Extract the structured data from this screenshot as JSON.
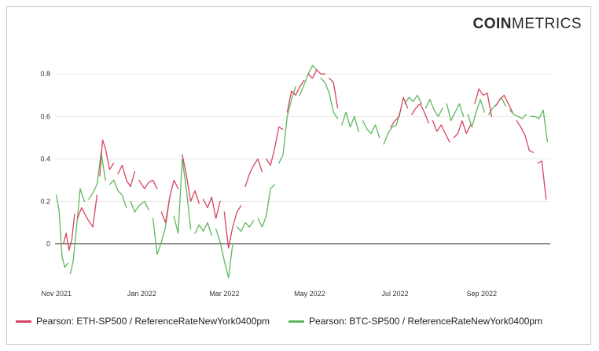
{
  "logo": {
    "bold_part": "COIN",
    "light_part": "METRICS"
  },
  "colors": {
    "eth": "#d6445f",
    "btc": "#5cb85c",
    "zero_line": "#222222",
    "grid": "#e8e8e8",
    "watermark": "#dcdcdc"
  },
  "chart_data": {
    "type": "line",
    "title": "",
    "xlabel": "",
    "ylabel": "",
    "x_tick_labels": [
      {
        "date": "2021-11-01",
        "label": "Nov 2021"
      },
      {
        "date": "2022-01-01",
        "label": "Jan 2022"
      },
      {
        "date": "2022-03-01",
        "label": "Mar 2022"
      },
      {
        "date": "2022-05-01",
        "label": "May 2022"
      },
      {
        "date": "2022-07-01",
        "label": "Jul 2022"
      },
      {
        "date": "2022-09-01",
        "label": "Sep 2022"
      }
    ],
    "y_ticks": [
      0,
      0.2,
      0.4,
      0.6,
      0.8
    ],
    "y_tick_labels": [
      "0",
      "0.2",
      "0.4",
      "0.6",
      "0.8"
    ],
    "xlim": [
      "2021-10-31",
      "2022-10-20"
    ],
    "ylim": [
      -0.19,
      0.86
    ],
    "grid": "horizontal",
    "legend_placement": "bottom",
    "series": [
      {
        "name": "Pearson: ETH-SP500 / ReferenceRateNewYork0400pm",
        "color": "#d6445f",
        "points": [
          [
            "2021-11-06",
            0.0
          ],
          [
            "2021-11-08",
            0.05
          ],
          [
            "2021-11-10",
            -0.03
          ],
          [
            "2021-11-12",
            0.02
          ],
          [
            "2021-11-14",
            0.14
          ],
          [
            "2021-11-16",
            0.12
          ],
          [
            "2021-11-19",
            0.17
          ],
          [
            "2021-11-23",
            0.12
          ],
          [
            "2021-11-27",
            0.08
          ],
          [
            "2021-11-30",
            0.23
          ],
          [
            "2021-12-02",
            0.32
          ],
          [
            "2021-12-04",
            0.49
          ],
          [
            "2021-12-06",
            0.45
          ],
          [
            "2021-12-09",
            0.35
          ],
          [
            "2021-12-12",
            0.38
          ],
          [
            "2021-12-15",
            0.33
          ],
          [
            "2021-12-18",
            0.37
          ],
          [
            "2021-12-21",
            0.3
          ],
          [
            "2021-12-24",
            0.27
          ],
          [
            "2021-12-27",
            0.34
          ],
          [
            "2021-12-30",
            0.3
          ],
          [
            "2022-01-03",
            0.26
          ],
          [
            "2022-01-06",
            0.29
          ],
          [
            "2022-01-09",
            0.3
          ],
          [
            "2022-01-12",
            0.26
          ],
          [
            "2022-01-15",
            0.15
          ],
          [
            "2022-01-18",
            0.1
          ],
          [
            "2022-01-21",
            0.22
          ],
          [
            "2022-01-24",
            0.3
          ],
          [
            "2022-01-27",
            0.26
          ],
          [
            "2022-01-30",
            0.42
          ],
          [
            "2022-02-02",
            0.32
          ],
          [
            "2022-02-05",
            0.2
          ],
          [
            "2022-02-08",
            0.25
          ],
          [
            "2022-02-11",
            0.19
          ],
          [
            "2022-02-14",
            0.21
          ],
          [
            "2022-02-17",
            0.17
          ],
          [
            "2022-02-20",
            0.22
          ],
          [
            "2022-02-23",
            0.12
          ],
          [
            "2022-02-26",
            0.2
          ],
          [
            "2022-03-01",
            0.15
          ],
          [
            "2022-03-04",
            -0.02
          ],
          [
            "2022-03-07",
            0.08
          ],
          [
            "2022-03-10",
            0.15
          ],
          [
            "2022-03-13",
            0.18
          ],
          [
            "2022-03-16",
            0.27
          ],
          [
            "2022-03-19",
            0.33
          ],
          [
            "2022-03-22",
            0.37
          ],
          [
            "2022-03-25",
            0.4
          ],
          [
            "2022-03-28",
            0.34
          ],
          [
            "2022-03-31",
            0.4
          ],
          [
            "2022-04-03",
            0.37
          ],
          [
            "2022-04-06",
            0.45
          ],
          [
            "2022-04-09",
            0.55
          ],
          [
            "2022-04-12",
            0.54
          ],
          [
            "2022-04-15",
            0.62
          ],
          [
            "2022-04-18",
            0.72
          ],
          [
            "2022-04-21",
            0.7
          ],
          [
            "2022-04-24",
            0.74
          ],
          [
            "2022-04-27",
            0.77
          ],
          [
            "2022-04-30",
            0.8
          ],
          [
            "2022-05-03",
            0.78
          ],
          [
            "2022-05-06",
            0.82
          ],
          [
            "2022-05-09",
            0.8
          ],
          [
            "2022-05-12",
            0.8
          ],
          [
            "2022-05-15",
            0.78
          ],
          [
            "2022-05-18",
            0.76
          ],
          [
            "2022-05-21",
            0.64
          ]
        ],
        "segments_late": [
          [
            "2022-06-28",
            0.55
          ],
          [
            "2022-07-01",
            0.58
          ],
          [
            "2022-07-04",
            0.6
          ],
          [
            "2022-07-07",
            0.69
          ],
          [
            "2022-07-10",
            0.64
          ],
          [
            "2022-07-13",
            0.61
          ],
          [
            "2022-07-16",
            0.64
          ],
          [
            "2022-07-19",
            0.66
          ],
          [
            "2022-07-22",
            0.62
          ],
          [
            "2022-07-25",
            0.57
          ],
          [
            "2022-07-28",
            0.58
          ],
          [
            "2022-07-31",
            0.53
          ],
          [
            "2022-08-03",
            0.56
          ],
          [
            "2022-08-06",
            0.52
          ],
          [
            "2022-08-09",
            0.48
          ],
          [
            "2022-08-12",
            0.5
          ],
          [
            "2022-08-15",
            0.52
          ],
          [
            "2022-08-18",
            0.58
          ],
          [
            "2022-08-21",
            0.52
          ],
          [
            "2022-08-24",
            0.56
          ],
          [
            "2022-08-27",
            0.66
          ],
          [
            "2022-08-30",
            0.73
          ],
          [
            "2022-09-02",
            0.7
          ],
          [
            "2022-09-05",
            0.71
          ],
          [
            "2022-09-08",
            0.6
          ],
          [
            "2022-09-11",
            0.65
          ],
          [
            "2022-09-14",
            0.68
          ],
          [
            "2022-09-17",
            0.7
          ],
          [
            "2022-09-20",
            0.66
          ],
          [
            "2022-09-23",
            0.62
          ],
          [
            "2022-09-26",
            0.58
          ],
          [
            "2022-09-29",
            0.55
          ],
          [
            "2022-10-02",
            0.51
          ],
          [
            "2022-10-05",
            0.44
          ],
          [
            "2022-10-08",
            0.43
          ],
          [
            "2022-10-11",
            0.38
          ],
          [
            "2022-10-14",
            0.39
          ],
          [
            "2022-10-17",
            0.21
          ]
        ]
      },
      {
        "name": "Pearson: BTC-SP500 / ReferenceRateNewYork0400pm",
        "color": "#5cb85c",
        "points": [
          [
            "2021-11-01",
            0.23
          ],
          [
            "2021-11-03",
            0.15
          ],
          [
            "2021-11-05",
            -0.06
          ],
          [
            "2021-11-07",
            -0.11
          ],
          [
            "2021-11-09",
            -0.09
          ],
          [
            "2021-11-11",
            -0.14
          ],
          [
            "2021-11-13",
            -0.08
          ],
          [
            "2021-11-15",
            0.05
          ],
          [
            "2021-11-18",
            0.26
          ],
          [
            "2021-11-21",
            0.2
          ],
          [
            "2021-11-24",
            0.21
          ],
          [
            "2021-11-27",
            0.24
          ],
          [
            "2021-11-30",
            0.28
          ],
          [
            "2021-12-03",
            0.43
          ],
          [
            "2021-12-06",
            0.3
          ],
          [
            "2021-12-09",
            0.28
          ],
          [
            "2021-12-12",
            0.3
          ],
          [
            "2021-12-15",
            0.25
          ],
          [
            "2021-12-18",
            0.23
          ],
          [
            "2021-12-21",
            0.17
          ],
          [
            "2021-12-24",
            0.2
          ],
          [
            "2021-12-27",
            0.15
          ],
          [
            "2021-12-30",
            0.18
          ],
          [
            "2022-01-03",
            0.2
          ],
          [
            "2022-01-06",
            0.16
          ],
          [
            "2022-01-09",
            0.12
          ],
          [
            "2022-01-12",
            -0.05
          ],
          [
            "2022-01-15",
            0.01
          ],
          [
            "2022-01-18",
            0.08
          ],
          [
            "2022-01-21",
            0.22
          ],
          [
            "2022-01-24",
            0.13
          ],
          [
            "2022-01-27",
            0.05
          ],
          [
            "2022-01-30",
            0.4
          ],
          [
            "2022-02-02",
            0.25
          ],
          [
            "2022-02-05",
            0.07
          ],
          [
            "2022-02-08",
            0.05
          ],
          [
            "2022-02-11",
            0.09
          ],
          [
            "2022-02-14",
            0.06
          ],
          [
            "2022-02-17",
            0.1
          ],
          [
            "2022-02-20",
            0.04
          ],
          [
            "2022-02-23",
            0.07
          ],
          [
            "2022-02-26",
            0.01
          ],
          [
            "2022-03-01",
            -0.08
          ],
          [
            "2022-03-04",
            -0.16
          ],
          [
            "2022-03-07",
            0.0
          ],
          [
            "2022-03-10",
            0.08
          ],
          [
            "2022-03-13",
            0.06
          ],
          [
            "2022-03-16",
            0.1
          ],
          [
            "2022-03-19",
            0.08
          ],
          [
            "2022-03-22",
            0.11
          ],
          [
            "2022-03-25",
            0.12
          ],
          [
            "2022-03-28",
            0.08
          ],
          [
            "2022-03-31",
            0.13
          ],
          [
            "2022-04-03",
            0.26
          ],
          [
            "2022-04-06",
            0.28
          ],
          [
            "2022-04-09",
            0.38
          ],
          [
            "2022-04-12",
            0.42
          ],
          [
            "2022-04-15",
            0.6
          ],
          [
            "2022-04-18",
            0.68
          ],
          [
            "2022-04-21",
            0.74
          ],
          [
            "2022-04-24",
            0.7
          ],
          [
            "2022-04-27",
            0.75
          ],
          [
            "2022-04-30",
            0.8
          ],
          [
            "2022-05-03",
            0.84
          ],
          [
            "2022-05-06",
            0.82
          ],
          [
            "2022-05-09",
            0.78
          ],
          [
            "2022-05-12",
            0.76
          ],
          [
            "2022-05-15",
            0.71
          ],
          [
            "2022-05-18",
            0.62
          ],
          [
            "2022-05-21",
            0.59
          ]
        ],
        "segments_late": [
          [
            "2022-05-24",
            0.56
          ],
          [
            "2022-05-27",
            0.62
          ],
          [
            "2022-05-30",
            0.55
          ],
          [
            "2022-06-02",
            0.6
          ],
          [
            "2022-06-05",
            0.53
          ],
          [
            "2022-06-08",
            0.58
          ],
          [
            "2022-06-11",
            0.54
          ],
          [
            "2022-06-14",
            0.52
          ],
          [
            "2022-06-17",
            0.56
          ],
          [
            "2022-06-20",
            0.5
          ],
          [
            "2022-06-23",
            0.47
          ],
          [
            "2022-06-26",
            0.52
          ],
          [
            "2022-06-29",
            0.55
          ],
          [
            "2022-07-02",
            0.56
          ],
          [
            "2022-07-05",
            0.63
          ],
          [
            "2022-07-08",
            0.66
          ],
          [
            "2022-07-11",
            0.69
          ],
          [
            "2022-07-14",
            0.67
          ],
          [
            "2022-07-17",
            0.7
          ],
          [
            "2022-07-20",
            0.66
          ],
          [
            "2022-07-23",
            0.64
          ],
          [
            "2022-07-26",
            0.68
          ],
          [
            "2022-07-29",
            0.63
          ],
          [
            "2022-08-01",
            0.6
          ],
          [
            "2022-08-04",
            0.64
          ],
          [
            "2022-08-07",
            0.66
          ],
          [
            "2022-08-10",
            0.58
          ],
          [
            "2022-08-13",
            0.62
          ],
          [
            "2022-08-16",
            0.66
          ],
          [
            "2022-08-19",
            0.6
          ],
          [
            "2022-08-22",
            0.61
          ],
          [
            "2022-08-25",
            0.55
          ],
          [
            "2022-08-28",
            0.62
          ],
          [
            "2022-08-31",
            0.68
          ],
          [
            "2022-09-03",
            0.62
          ],
          [
            "2022-09-06",
            0.61
          ],
          [
            "2022-09-09",
            0.64
          ],
          [
            "2022-09-12",
            0.66
          ],
          [
            "2022-09-15",
            0.69
          ],
          [
            "2022-09-18",
            0.65
          ],
          [
            "2022-09-21",
            0.63
          ],
          [
            "2022-09-24",
            0.61
          ],
          [
            "2022-09-27",
            0.6
          ],
          [
            "2022-09-30",
            0.59
          ],
          [
            "2022-10-03",
            0.61
          ],
          [
            "2022-10-06",
            0.6
          ],
          [
            "2022-10-09",
            0.6
          ],
          [
            "2022-10-12",
            0.59
          ],
          [
            "2022-10-15",
            0.63
          ],
          [
            "2022-10-18",
            0.48
          ]
        ]
      }
    ]
  }
}
